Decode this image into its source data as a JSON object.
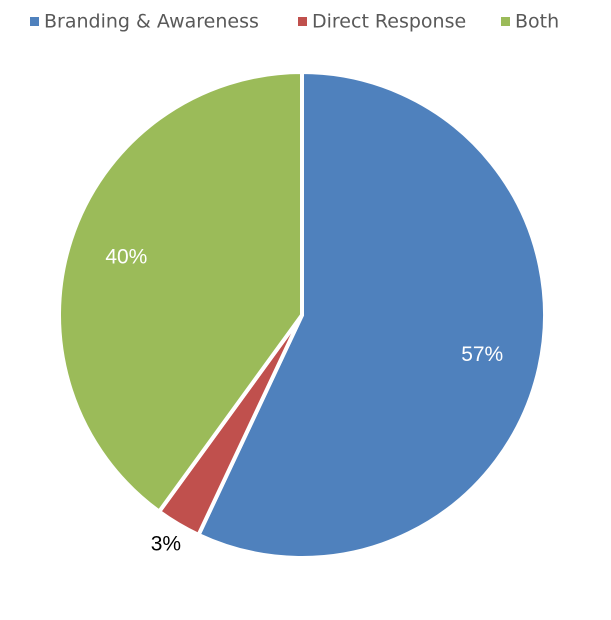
{
  "chart_data": {
    "type": "pie",
    "categories": [
      "Branding & Awareness",
      "Direct Response",
      "Both"
    ],
    "values": [
      57,
      3,
      40
    ],
    "value_labels": [
      "57%",
      "3%",
      "40%"
    ],
    "colors": [
      "#4f81bd",
      "#c0504d",
      "#9bbb59"
    ]
  }
}
